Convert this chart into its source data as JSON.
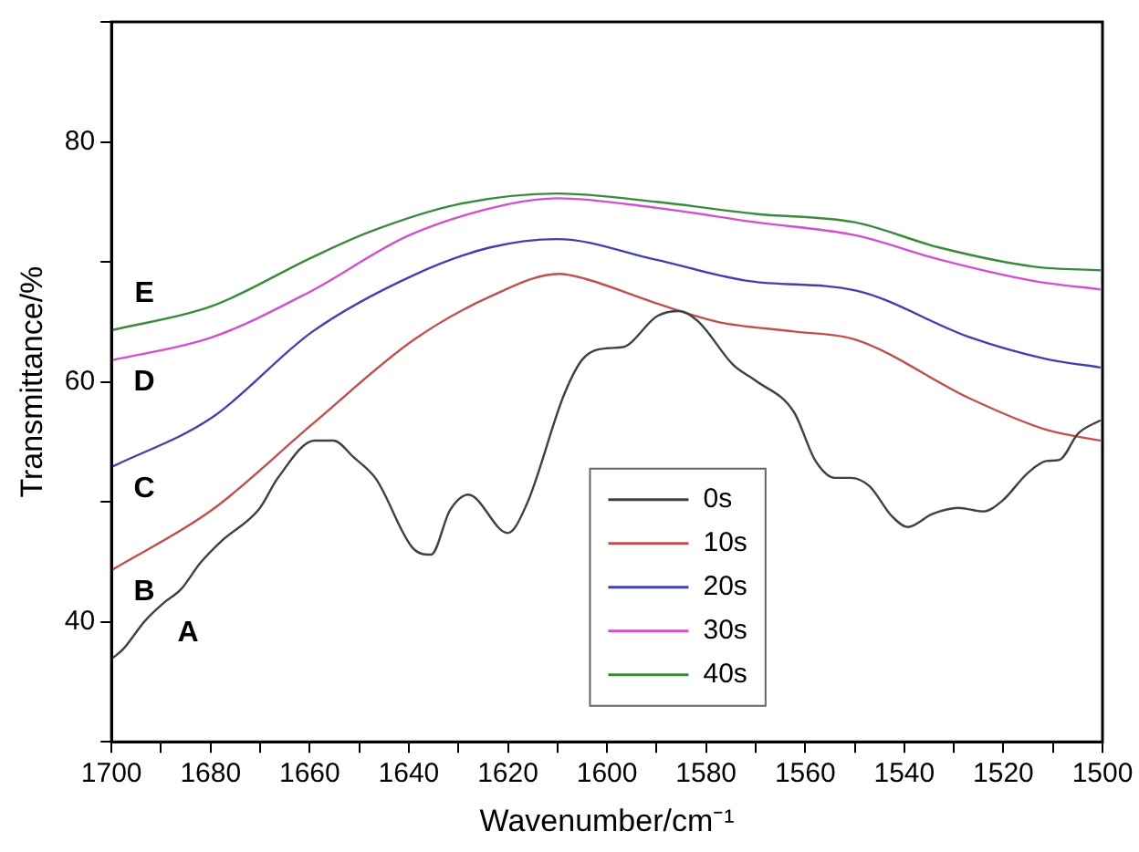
{
  "chart_data": {
    "type": "line",
    "xlabel": "Wavenumber/cm⁻¹",
    "ylabel": "Transmittance/%",
    "xlim": [
      1700,
      1500
    ],
    "ylim": [
      30,
      90
    ],
    "xticks": [
      1700,
      {
        "value": 1690,
        "label": null
      },
      1680,
      {
        "value": 1670,
        "label": null
      },
      1660,
      {
        "value": 1650,
        "label": null
      },
      1640,
      {
        "value": 1630,
        "label": null
      },
      1620,
      {
        "value": 1610,
        "label": null
      },
      1600,
      {
        "value": 1590,
        "label": null
      },
      1580,
      {
        "value": 1570,
        "label": null
      },
      1560,
      {
        "value": 1550,
        "label": null
      },
      1540,
      {
        "value": 1530,
        "label": null
      },
      1520,
      {
        "value": 1510,
        "label": null
      },
      1500
    ],
    "yticks": [
      {
        "value": 30,
        "label": null
      },
      40,
      {
        "value": 50,
        "label": null
      },
      60,
      {
        "value": 70,
        "label": null
      },
      80,
      {
        "value": 90,
        "label": null
      }
    ],
    "grid": false,
    "legend": "bottom right",
    "marker": "none",
    "line_style": "solid",
    "series": [
      {
        "name": "0s",
        "color": "#404040",
        "x": [
          1700,
          1697.7,
          1693.2,
          1689.4,
          1686,
          1682.1,
          1677.9,
          1670.2,
          1666.4,
          1659,
          1655.2,
          1651.1,
          1646.6,
          1639.3,
          1635.5,
          1631.7,
          1628,
          1620,
          1616.2,
          1608.6,
          1604.9,
          1600,
          1596.8,
          1589.8,
          1585.3,
          1581.5,
          1574.5,
          1570,
          1562.3,
          1557.9,
          1554,
          1550.8,
          1547,
          1542.5,
          1539.3,
          1534.3,
          1529.1,
          1524.1,
          1520.2,
          1515.1,
          1511.3,
          1508.7,
          1504.9,
          1500.4
        ],
        "values": [
          36.9,
          37.7,
          40.1,
          41.6,
          42.7,
          44.9,
          46.7,
          49.4,
          52,
          55.1,
          55.1,
          53.7,
          51.9,
          46.2,
          45.6,
          49.3,
          50.6,
          47.4,
          49.8,
          59,
          61.9,
          62.8,
          62.9,
          65.5,
          65.9,
          65,
          61.4,
          60.1,
          57.5,
          53.4,
          52,
          52,
          51.3,
          48.8,
          47.9,
          49,
          49.5,
          49.2,
          50.1,
          52.4,
          53.4,
          53.5,
          55.7,
          56.8
        ]
      },
      {
        "name": "10s",
        "color": "#c0504d",
        "x": [
          1700,
          1679.8,
          1659.4,
          1639,
          1623.6,
          1609.6,
          1604.5,
          1590.4,
          1577.7,
          1562.3,
          1549.7,
          1526.7,
          1511.3,
          1500.4
        ],
        "values": [
          44.3,
          49.3,
          56.5,
          63.5,
          67.1,
          69,
          68.6,
          66.6,
          65,
          64.2,
          63.5,
          58.6,
          56,
          55.1
        ]
      },
      {
        "name": "20s",
        "color": "#4040b0",
        "x": [
          1700,
          1679.8,
          1659.4,
          1639,
          1623.6,
          1610,
          1590.4,
          1571.3,
          1549.7,
          1526.7,
          1511.3,
          1500.4
        ],
        "values": [
          52.9,
          57,
          64.2,
          68.9,
          71.2,
          71.9,
          70.2,
          68.4,
          67.6,
          63.7,
          61.9,
          61.2
        ]
      },
      {
        "name": "30s",
        "color": "#d050d0",
        "x": [
          1700,
          1679.8,
          1660,
          1640,
          1620,
          1610,
          1590,
          1570,
          1549.7,
          1533,
          1513.8,
          1500.4
        ],
        "values": [
          61.8,
          63.7,
          67.5,
          72.2,
          74.8,
          75.3,
          74.5,
          73.3,
          72.2,
          70.2,
          68.4,
          67.7
        ]
      },
      {
        "name": "40s",
        "color": "#3a8a3a",
        "x": [
          1700,
          1679.8,
          1659.4,
          1647.9,
          1630,
          1610,
          1590,
          1570,
          1550,
          1533,
          1513.8,
          1500.4
        ],
        "values": [
          64.3,
          66.3,
          70.4,
          72.5,
          74.8,
          75.7,
          75,
          74,
          73.3,
          71.2,
          69.6,
          69.3
        ]
      }
    ],
    "annotations": [
      "A",
      "B",
      "C",
      "D",
      "E"
    ]
  }
}
